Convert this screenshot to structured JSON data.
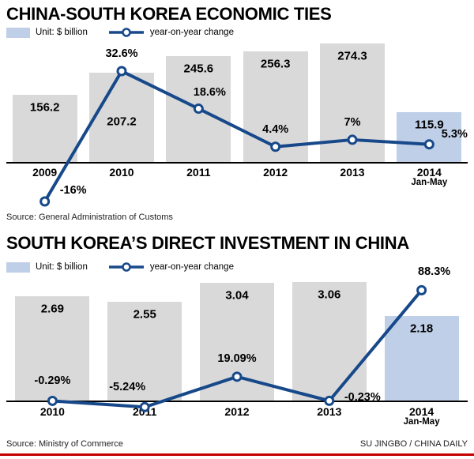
{
  "credit": "SU JINGBO / CHINA DAILY",
  "rule_color": "#c40000",
  "chart_data": [
    {
      "type": "bar+line",
      "title": "CHINA-SOUTH KOREA ECONOMIC TIES",
      "unit_label": "Unit: $ billion",
      "line_label": "year-on-year change",
      "source": "Source: General Administration of Customs",
      "categories": [
        "2009",
        "2010",
        "2011",
        "2012",
        "2013",
        "2014"
      ],
      "last_category_sublabel": "Jan-May",
      "highlight_last": true,
      "legend_position": "top-left",
      "grid": false,
      "series": [
        {
          "name": "Unit: $ billion",
          "type": "bar",
          "values": [
            156.2,
            207.2,
            245.6,
            256.3,
            274.3,
            115.9
          ],
          "labels": [
            "156.2",
            "207.2",
            "245.6",
            "256.3",
            "274.3",
            "115.9"
          ]
        },
        {
          "name": "year-on-year change",
          "type": "line",
          "values": [
            -16,
            32.6,
            18.6,
            4.4,
            7,
            5.3
          ],
          "labels": [
            "-16%",
            "32.6%",
            "18.6%",
            "4.4%",
            "7%",
            "5.3%"
          ]
        }
      ],
      "colors": {
        "bar": "#d9d9d9",
        "highlight_bar": "#bfcfe7",
        "line": "#17498a"
      }
    },
    {
      "type": "bar+line",
      "title": "SOUTH KOREA’S DIRECT INVESTMENT IN CHINA",
      "unit_label": "Unit: $ billion",
      "line_label": "year-on-year change",
      "source": "Source: Ministry of Commerce",
      "categories": [
        "2010",
        "2011",
        "2012",
        "2013",
        "2014"
      ],
      "last_category_sublabel": "Jan-May",
      "highlight_last": true,
      "legend_position": "top-left",
      "grid": false,
      "series": [
        {
          "name": "Unit: $ billion",
          "type": "bar",
          "values": [
            2.69,
            2.55,
            3.04,
            3.06,
            2.18
          ],
          "labels": [
            "2.69",
            "2.55",
            "3.04",
            "3.06",
            "2.18"
          ]
        },
        {
          "name": "year-on-year change",
          "type": "line",
          "values": [
            -0.29,
            -5.24,
            19.09,
            -0.23,
            88.3
          ],
          "labels": [
            "-0.29%",
            "-5.24%",
            "19.09%",
            "-0.23%",
            "88.3%"
          ]
        }
      ],
      "colors": {
        "bar": "#d9d9d9",
        "highlight_bar": "#bfcfe7",
        "line": "#17498a"
      }
    }
  ]
}
